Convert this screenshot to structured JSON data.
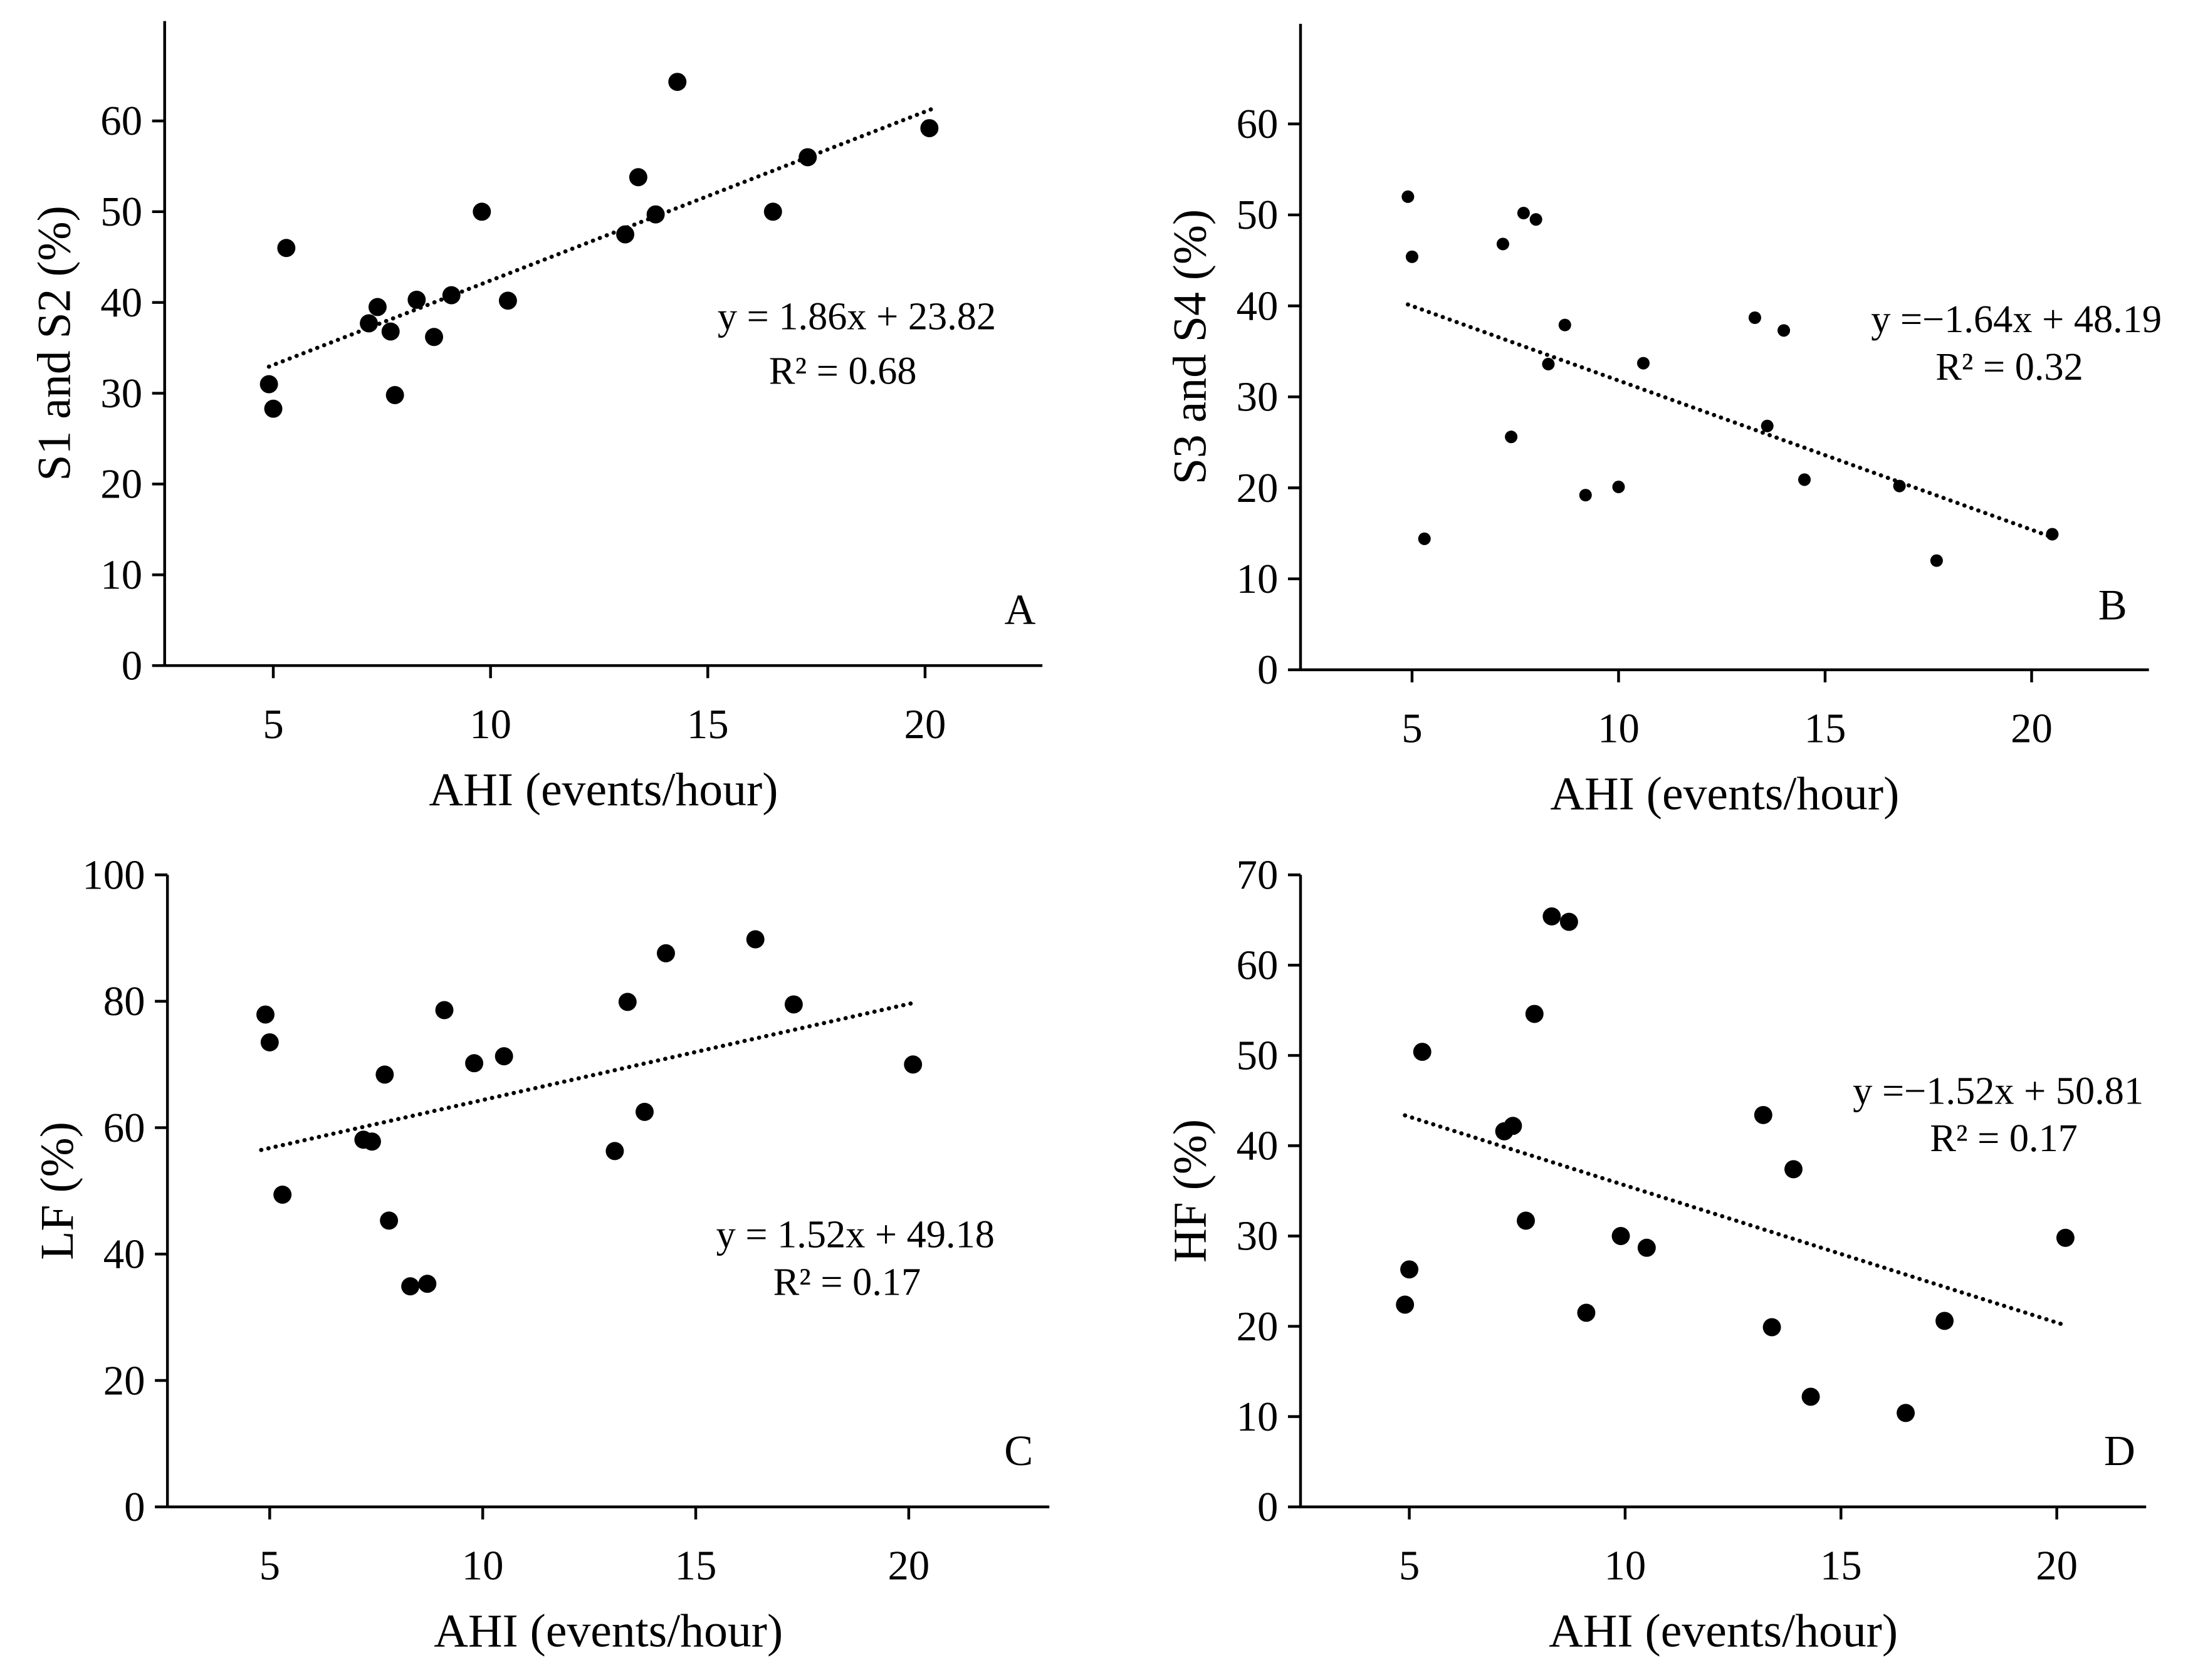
{
  "figure": {
    "colors": {
      "ink": "#000000",
      "background": "#ffffff"
    }
  },
  "chart_data": [
    {
      "type": "scatter",
      "panel": "A",
      "xlabel": "AHI (events/hour)",
      "ylabel": "S1 and S2 (%)",
      "xlim": [
        2.5,
        22.7
      ],
      "ylim": [
        0,
        71
      ],
      "xticks": [
        5,
        10,
        15,
        20
      ],
      "yticks": [
        0,
        10,
        20,
        30,
        40,
        50,
        60
      ],
      "points": {
        "x": [
          4.9,
          5.0,
          5.3,
          7.2,
          7.4,
          7.7,
          7.8,
          8.3,
          8.7,
          9.1,
          9.8,
          10.4,
          13.1,
          13.4,
          13.8,
          14.3,
          16.5,
          17.3,
          20.1
        ],
        "y": [
          31.0,
          28.3,
          46.0,
          37.7,
          39.5,
          36.8,
          29.8,
          40.3,
          36.2,
          40.8,
          50.0,
          40.2,
          47.5,
          53.8,
          49.7,
          64.3,
          50.0,
          56.0,
          59.2
        ]
      },
      "trendline": {
        "slope": 1.86,
        "intercept": 23.82,
        "x_range": [
          4.9,
          20.2
        ]
      },
      "equation": "y = 1.86x + 23.82",
      "r_squared": "R² = 0.68"
    },
    {
      "type": "scatter",
      "panel": "B",
      "xlabel": "AHI (events/hour)",
      "ylabel": "S3 and S4 (%)",
      "xlim": [
        2.3,
        22.84
      ],
      "ylim": [
        0,
        71
      ],
      "xticks": [
        5,
        10,
        15,
        20
      ],
      "yticks": [
        0,
        10,
        20,
        30,
        40,
        50,
        60
      ],
      "points": {
        "x": [
          4.9,
          5.0,
          5.3,
          7.2,
          7.4,
          7.7,
          8.0,
          8.3,
          8.7,
          9.2,
          10.0,
          10.6,
          13.3,
          13.6,
          14.0,
          14.5,
          16.8,
          17.7,
          20.5
        ],
        "y": [
          52.0,
          45.4,
          14.4,
          46.8,
          25.6,
          50.2,
          49.5,
          33.6,
          37.9,
          19.2,
          20.1,
          33.7,
          38.7,
          26.8,
          37.3,
          20.9,
          20.2,
          12.0,
          14.9
        ]
      },
      "trendline": {
        "slope": -1.64,
        "intercept": 48.19,
        "x_range": [
          4.9,
          20.4
        ]
      },
      "equation": "y =−1.64x + 48.19",
      "r_squared": "R² = 0.32"
    },
    {
      "type": "scatter",
      "panel": "C",
      "xlabel": "AHI (events/hour)",
      "ylabel": "LF (%)",
      "xlim": [
        2.6,
        23.3
      ],
      "ylim": [
        0,
        100
      ],
      "xticks": [
        5,
        10,
        15,
        20
      ],
      "yticks": [
        0,
        20,
        40,
        60,
        80,
        100
      ],
      "points": {
        "x": [
          4.9,
          5.0,
          5.3,
          7.2,
          7.4,
          7.7,
          7.8,
          8.3,
          8.7,
          9.1,
          9.8,
          10.5,
          13.1,
          13.4,
          13.8,
          14.3,
          16.4,
          17.3,
          20.1
        ],
        "y": [
          77.9,
          73.5,
          49.4,
          58.1,
          57.8,
          68.4,
          45.3,
          34.9,
          35.3,
          78.6,
          70.2,
          71.3,
          56.3,
          79.9,
          62.5,
          87.6,
          89.8,
          79.5,
          70.0
        ]
      },
      "trendline": {
        "slope": 1.52,
        "intercept": 49.18,
        "x_range": [
          4.8,
          20.1
        ]
      },
      "equation": "y = 1.52x + 49.18",
      "r_squared": "R² = 0.17"
    },
    {
      "type": "scatter",
      "panel": "D",
      "xlabel": "AHI (events/hour)",
      "ylabel": "HF (%)",
      "xlim": [
        2.48,
        22.07
      ],
      "ylim": [
        0,
        70
      ],
      "xticks": [
        5,
        10,
        15,
        20
      ],
      "yticks": [
        0,
        10,
        20,
        30,
        40,
        50,
        60,
        70
      ],
      "points": {
        "x": [
          4.9,
          5.0,
          5.3,
          7.2,
          7.4,
          7.7,
          7.9,
          8.3,
          8.7,
          9.1,
          9.9,
          10.5,
          13.2,
          13.4,
          13.9,
          14.3,
          16.5,
          17.4,
          20.2
        ],
        "y": [
          22.4,
          26.3,
          50.4,
          41.6,
          42.2,
          31.7,
          54.6,
          65.4,
          64.8,
          21.5,
          30.0,
          28.7,
          43.4,
          19.9,
          37.4,
          12.2,
          10.4,
          20.6,
          29.8
        ]
      },
      "trendline": {
        "slope": -1.52,
        "intercept": 50.81,
        "x_range": [
          4.9,
          20.2
        ]
      },
      "equation": "y =−1.52x + 50.81",
      "r_squared": "R² = 0.17"
    }
  ]
}
